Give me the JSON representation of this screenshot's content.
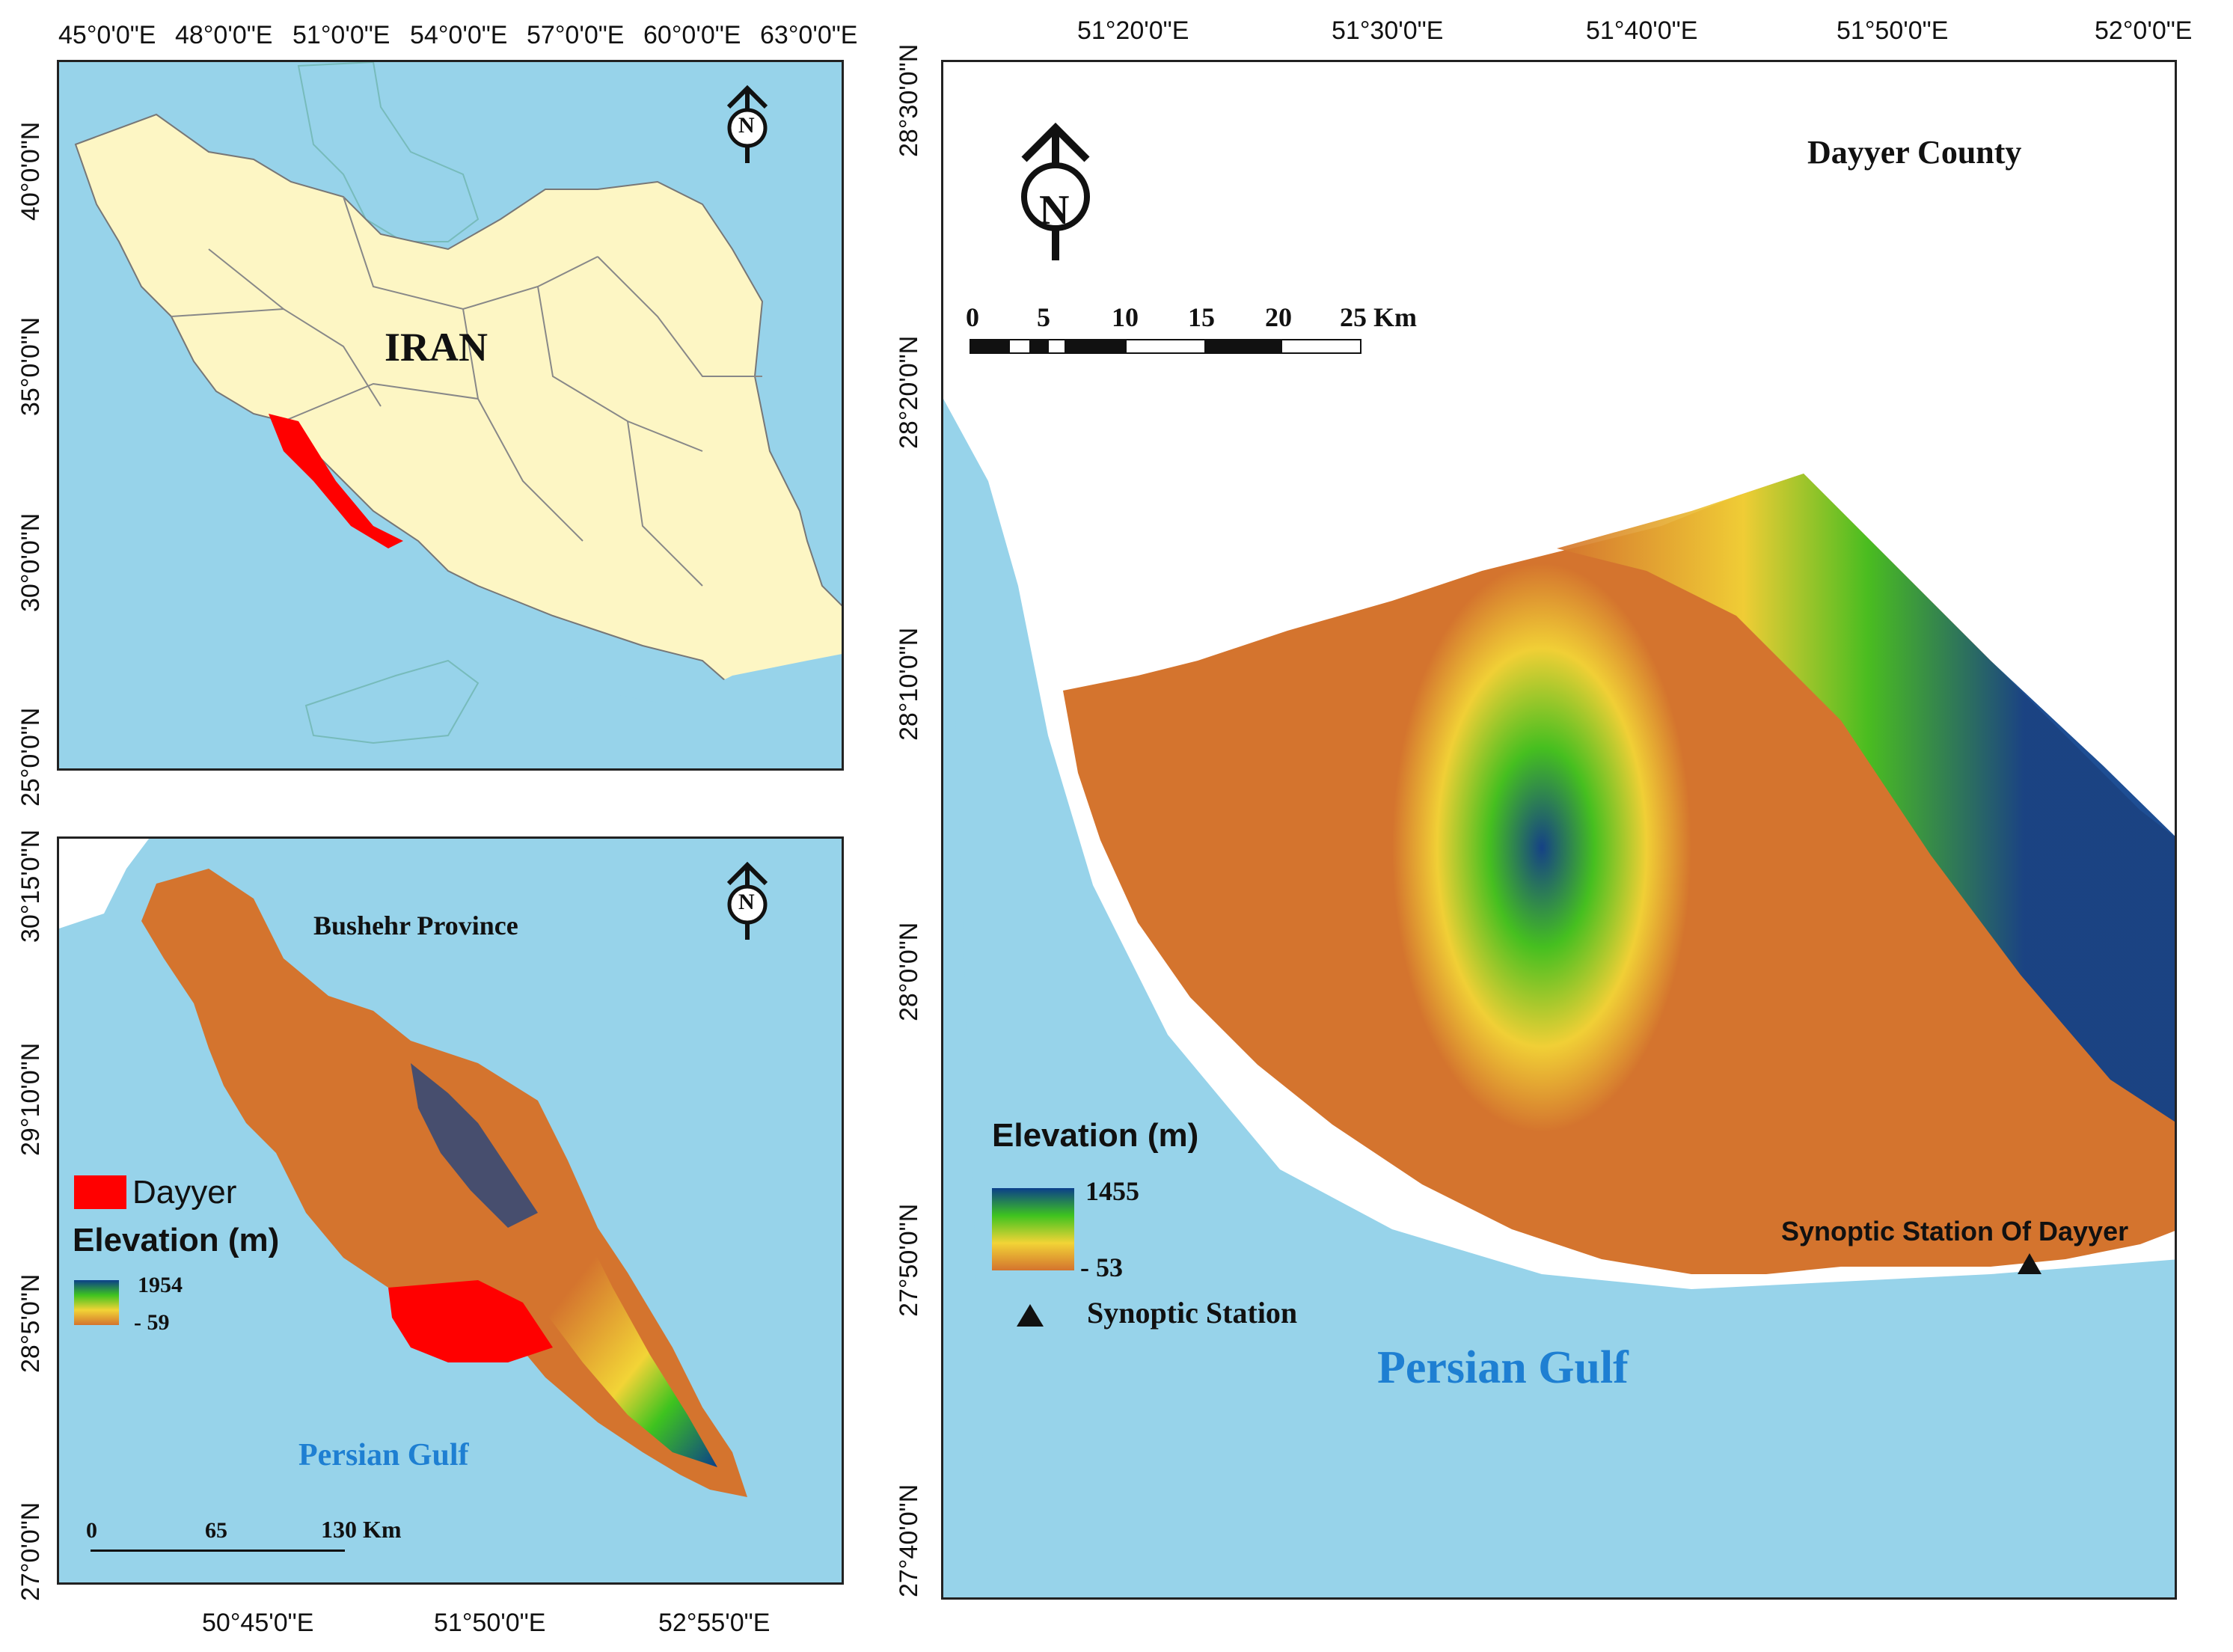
{
  "colors": {
    "sea": "#97d3ea",
    "land_iran": "#fdf6c4",
    "dayyer": "#ff0000",
    "elev_low": "#d4742e",
    "elev_mid1": "#f2d436",
    "elev_mid2": "#3ec31f",
    "elev_high": "#0b3f8a",
    "gulf_label": "#1e7fd2"
  },
  "icons": [
    "north-arrow-icon",
    "triangle-station-icon"
  ],
  "panel_iran": {
    "title": "IRAN",
    "north": "N",
    "lon_ticks": [
      "45°0'0\"E",
      "48°0'0\"E",
      "51°0'0\"E",
      "54°0'0\"E",
      "57°0'0\"E",
      "60°0'0\"E",
      "63°0'0\"E"
    ],
    "lat_ticks": [
      "40°0'0\"N",
      "35°0'0\"N",
      "30°0'0\"N",
      "25°0'0\"N"
    ]
  },
  "panel_bushehr": {
    "province_label": "Bushehr Province",
    "north": "N",
    "gulf_label": "Persian Gulf",
    "legend": {
      "dayyer_label": "Dayyer",
      "elev_title": "Elevation (m)",
      "elev_max": "1954",
      "elev_min": "- 59"
    },
    "scale": {
      "labels": [
        "0",
        "65",
        "130 Km"
      ]
    },
    "lon_ticks": [
      "50°45'0\"E",
      "51°50'0\"E",
      "52°55'0\"E"
    ],
    "lat_ticks": [
      "30°15'0\"N",
      "29°10'0\"N",
      "28°5'0\"N",
      "27°0'0\"N"
    ]
  },
  "panel_dayyer": {
    "title": "Dayyer County",
    "north": "N",
    "gulf_label": "Persian Gulf",
    "scale": {
      "labels": [
        "0",
        "5",
        "10",
        "15",
        "20",
        "25 Km"
      ]
    },
    "legend": {
      "elev_title": "Elevation (m)",
      "elev_max": "1455",
      "elev_min": "- 53",
      "station_label": "Synoptic Station"
    },
    "station_name": "Synoptic Station Of Dayyer",
    "lon_ticks": [
      "51°20'0\"E",
      "51°30'0\"E",
      "51°40'0\"E",
      "51°50'0\"E",
      "52°0'0\"E"
    ],
    "lat_ticks": [
      "28°30'0\"N",
      "28°20'0\"N",
      "28°10'0\"N",
      "28°0'0\"N",
      "27°50'0\"N",
      "27°40'0\"N"
    ]
  }
}
